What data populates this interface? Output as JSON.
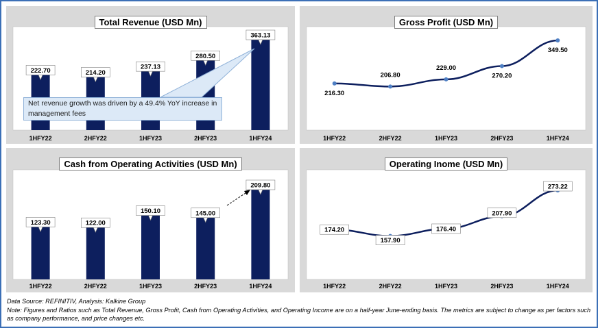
{
  "colors": {
    "bar": "#0d1f5e",
    "line": "#0d1f5e",
    "point": "#4e7fc4",
    "panel_bg": "#d9d9d9",
    "callout_bg": "#dce9f7"
  },
  "chart_data": [
    {
      "type": "bar",
      "title": "Total Revenue (USD Mn)",
      "categories": [
        "1HFY22",
        "2HFY22",
        "1HFY23",
        "2HFY23",
        "1HFY24"
      ],
      "values": [
        222.7,
        214.2,
        237.13,
        280.5,
        363.13
      ],
      "value_labels": [
        "222.70",
        "214.20",
        "237.13",
        "280.50",
        "363.13"
      ],
      "annotation": "Net revenue growth was driven by a 49.4% YoY increase in management fees",
      "grid": false
    },
    {
      "type": "line",
      "title": "Gross Profit (USD Mn)",
      "categories": [
        "1HFY22",
        "2HFY22",
        "1HFY23",
        "2HFY23",
        "1HFY24"
      ],
      "values": [
        216.3,
        206.8,
        229.0,
        270.2,
        349.5
      ],
      "value_labels": [
        "216.30",
        "206.80",
        "229.00",
        "270.20",
        "349.50"
      ],
      "grid": false
    },
    {
      "type": "bar",
      "title": "Cash from Operating Activities (USD Mn)",
      "categories": [
        "1HFY22",
        "2HFY22",
        "1HFY23",
        "2HFY23",
        "1HFY24"
      ],
      "values": [
        123.3,
        122.0,
        150.1,
        145.0,
        209.8
      ],
      "value_labels": [
        "123.30",
        "122.00",
        "150.10",
        "145.00",
        "209.80"
      ],
      "grid": false
    },
    {
      "type": "line",
      "title": "Operating Inome (USD Mn)",
      "categories": [
        "1HFY22",
        "2HFY22",
        "1HFY23",
        "2HFY23",
        "1HFY24"
      ],
      "values": [
        174.2,
        157.9,
        176.4,
        207.9,
        273.22
      ],
      "value_labels": [
        "174.20",
        "157.90",
        "176.40",
        "207.90",
        "273.22"
      ],
      "grid": false
    }
  ],
  "footer": {
    "source": "Data Source: REFINITIV, Analysis: Kalkine Group",
    "note": "Note: Figures and Ratios such as Total Revenue, Gross Profit, Cash from Operating Activities, and Operating Income are on a half-year June-ending basis. The metrics are subject to change as per factors such as company performance, and price changes etc."
  }
}
